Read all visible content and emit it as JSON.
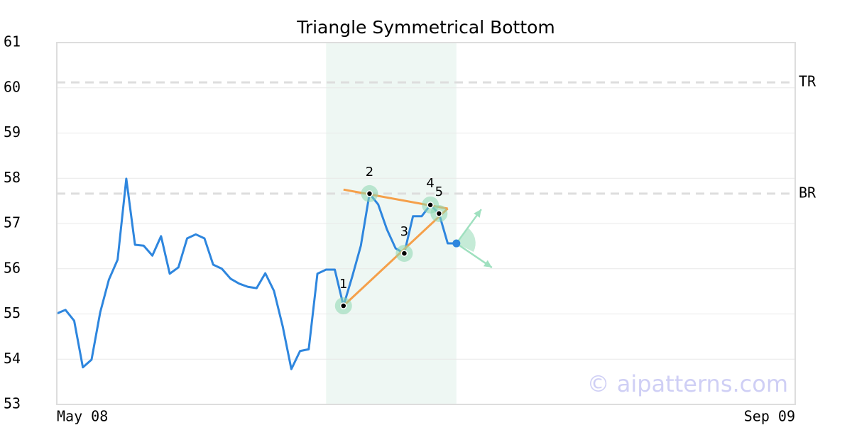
{
  "chart_data": {
    "type": "line",
    "title": "Triangle Symmetrical Bottom",
    "watermark": "© aipatterns.com",
    "categories": [
      "May 08",
      null,
      null,
      null,
      null,
      null,
      null,
      null,
      null,
      null,
      null,
      null,
      null,
      null,
      null,
      null,
      null,
      null,
      null,
      null,
      null,
      null,
      null,
      null,
      null,
      null,
      null,
      null,
      null,
      null,
      null,
      null,
      null,
      null,
      null,
      null,
      null,
      null,
      null,
      null,
      null,
      null,
      null,
      null,
      null,
      null,
      null,
      null,
      null,
      null,
      null,
      null,
      null,
      null,
      null,
      null,
      null,
      null,
      null,
      null,
      null,
      null,
      null,
      null,
      null,
      null,
      null,
      null,
      null,
      null,
      null,
      null,
      null,
      null,
      null,
      null,
      null,
      null,
      null,
      null,
      null,
      null,
      null,
      null,
      null,
      "Sep 09"
    ],
    "values": [
      55.01,
      55.09,
      54.85,
      53.82,
      53.99,
      55.04,
      55.76,
      56.2,
      57.99,
      56.53,
      56.51,
      56.29,
      56.72,
      55.89,
      56.03,
      56.67,
      56.76,
      56.67,
      56.09,
      56.0,
      55.78,
      55.67,
      55.6,
      55.57,
      55.9,
      55.51,
      54.73,
      53.78,
      54.18,
      54.22,
      55.89,
      55.98,
      55.98,
      55.18,
      55.82,
      56.51,
      57.66,
      57.42,
      56.87,
      56.45,
      56.34,
      57.16,
      57.16,
      57.41,
      57.22,
      56.56,
      56.56,
      null,
      null,
      null,
      null,
      null,
      null,
      null,
      null,
      null,
      null,
      null,
      null,
      null,
      null,
      null,
      null,
      null,
      null,
      null,
      null,
      null,
      null,
      null,
      null,
      null,
      null,
      null,
      null,
      null,
      null,
      null,
      null,
      null,
      null,
      null,
      null,
      null,
      null,
      null
    ],
    "point_labels": [
      null,
      null,
      null,
      null,
      null,
      null,
      null,
      null,
      null,
      null,
      null,
      null,
      null,
      null,
      null,
      null,
      null,
      null,
      null,
      null,
      null,
      null,
      null,
      null,
      null,
      null,
      null,
      null,
      null,
      null,
      null,
      null,
      null,
      "1",
      null,
      null,
      "2",
      null,
      null,
      null,
      "3",
      null,
      null,
      "4",
      "5",
      null,
      null,
      null,
      null,
      null,
      null,
      null,
      null,
      null,
      null,
      null,
      null,
      null,
      null,
      null,
      null,
      null,
      null,
      null,
      null,
      null,
      null,
      null,
      null,
      null,
      null,
      null,
      null,
      null,
      null,
      null,
      null,
      null,
      null,
      null,
      null,
      null,
      null,
      null,
      null,
      null
    ],
    "color": "#2e86de",
    "highlight_range": [
      31,
      46
    ],
    "trendlines": [
      {
        "x": [
          33,
          45
        ],
        "values": [
          57.75,
          57.33
        ],
        "color": "#f5a04a"
      },
      {
        "x": [
          33,
          45
        ],
        "values": [
          55.18,
          57.33
        ],
        "color": "#f5a04a"
      }
    ],
    "reference_lines": [
      {
        "label": "TR",
        "value": 60.12
      },
      {
        "label": "BR",
        "value": 57.66
      }
    ],
    "ylim": [
      53,
      61
    ],
    "yticks": [
      53,
      54,
      55,
      56,
      57,
      58,
      59,
      60,
      61
    ],
    "grid": true
  }
}
